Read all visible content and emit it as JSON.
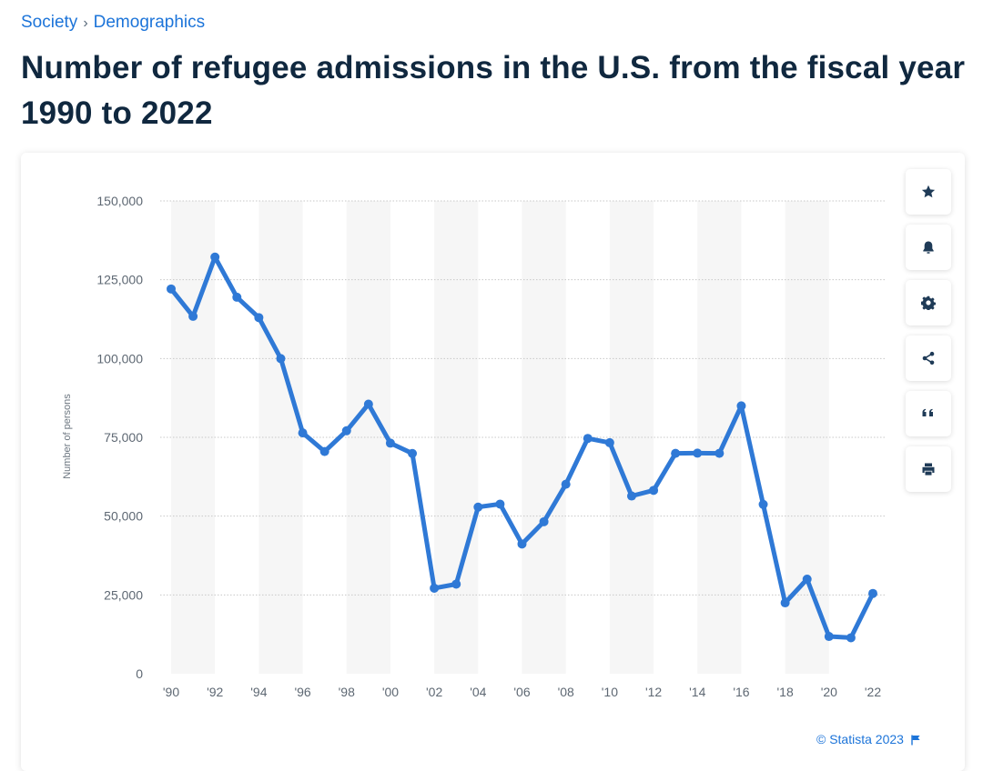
{
  "breadcrumb": {
    "items": [
      "Society",
      "Demographics"
    ],
    "separator": "›"
  },
  "page": {
    "title": "Number of refugee admissions in the U.S. from the fiscal year 1990 to 2022"
  },
  "toolbar": {
    "buttons": [
      {
        "name": "favorite",
        "icon": "star-icon"
      },
      {
        "name": "notification",
        "icon": "bell-icon"
      },
      {
        "name": "settings",
        "icon": "gear-icon"
      },
      {
        "name": "share",
        "icon": "share-icon"
      },
      {
        "name": "cite",
        "icon": "quote-icon"
      },
      {
        "name": "print",
        "icon": "print-icon"
      }
    ]
  },
  "footer": {
    "credit": "© Statista 2023"
  },
  "colors": {
    "line": "#2f79d6",
    "band": "#f6f6f6",
    "grid": "#c8c8c8",
    "accent": "#1c74d9"
  },
  "chart_data": {
    "type": "line",
    "title": "Number of refugee admissions in the U.S. from the fiscal year 1990 to 2022",
    "xlabel": "",
    "ylabel": "Number of persons",
    "x": [
      1990,
      1991,
      1992,
      1993,
      1994,
      1995,
      1996,
      1997,
      1998,
      1999,
      2000,
      2001,
      2002,
      2003,
      2004,
      2005,
      2006,
      2007,
      2008,
      2009,
      2010,
      2011,
      2012,
      2013,
      2014,
      2015,
      2016,
      2017,
      2018,
      2019,
      2020,
      2021,
      2022
    ],
    "x_tick_labels": [
      "'90",
      "'92",
      "'94",
      "'96",
      "'98",
      "'00",
      "'02",
      "'04",
      "'06",
      "'08",
      "'10",
      "'12",
      "'14",
      "'16",
      "'18",
      "'20",
      "'22"
    ],
    "y_ticks": [
      0,
      25000,
      50000,
      75000,
      100000,
      125000,
      150000
    ],
    "y_tick_labels": [
      "0",
      "25,000",
      "50,000",
      "75,000",
      "100,000",
      "125,000",
      "150,000"
    ],
    "ylim": [
      0,
      150000
    ],
    "grid": true,
    "series": [
      {
        "name": "Number of refugee admissions",
        "values": [
          122066,
          113389,
          132173,
          119448,
          112981,
          99974,
          76403,
          70488,
          77080,
          85525,
          73147,
          69886,
          27131,
          28422,
          52868,
          53813,
          41150,
          48218,
          60107,
          74654,
          73293,
          56384,
          58179,
          69909,
          69975,
          69933,
          84989,
          53716,
          22491,
          30000,
          11814,
          11411,
          25465
        ]
      }
    ]
  }
}
